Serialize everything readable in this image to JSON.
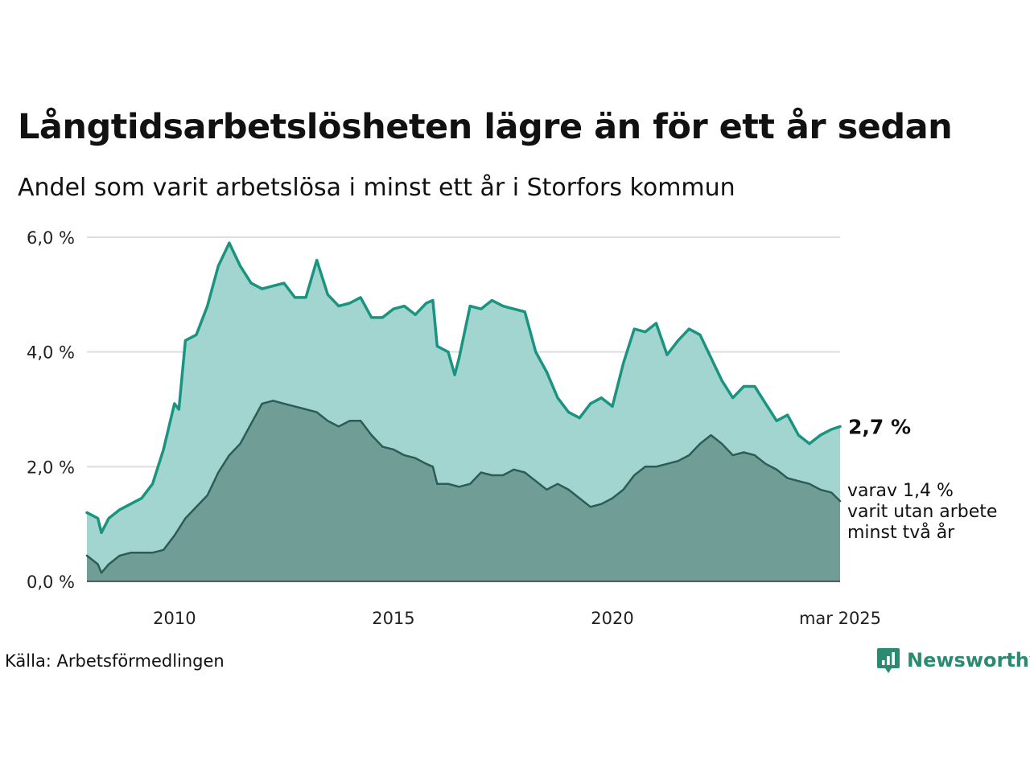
{
  "title": "Långtidsarbetslösheten lägre än för ett år sedan",
  "subtitle": "Andel som varit arbetslösa i minst ett år i Storfors kommun",
  "source": "Källa: Arbetsförmedlingen",
  "brand": "Newsworthy",
  "colors": {
    "total_line": "#1a9480",
    "total_fill": "#a3d5d0",
    "long_line": "#2b5d55",
    "long_fill": "#709e97",
    "grid": "#dddddd",
    "axis": "#333333",
    "brand": "#2d8a72"
  },
  "chart_data": {
    "type": "area",
    "x_start": "2008-01",
    "x_end": "2025-03",
    "xlim": [
      2008.0,
      2025.2
    ],
    "ylim": [
      0,
      6
    ],
    "y_ticks": [
      0,
      2,
      4,
      6
    ],
    "y_tick_labels": [
      "0,0 %",
      "2,0 %",
      "4,0 %",
      "6,0 %"
    ],
    "x_ticks": [
      2010,
      2015,
      2020,
      2025.2
    ],
    "x_tick_labels": [
      "2010",
      "2015",
      "2020",
      "mar 2025"
    ],
    "grid": true,
    "end_labels": {
      "total": "2,7 %",
      "long_lines": [
        "varav 1,4 %",
        "varit utan arbete",
        "minst två år"
      ]
    },
    "series": [
      {
        "key": "total",
        "x": [
          2008.0,
          2008.25,
          2008.33,
          2008.5,
          2008.75,
          2009.0,
          2009.25,
          2009.5,
          2009.75,
          2010.0,
          2010.1,
          2010.25,
          2010.5,
          2010.75,
          2011.0,
          2011.25,
          2011.5,
          2011.75,
          2012.0,
          2012.25,
          2012.5,
          2012.75,
          2013.0,
          2013.25,
          2013.5,
          2013.75,
          2014.0,
          2014.25,
          2014.5,
          2014.75,
          2015.0,
          2015.25,
          2015.5,
          2015.75,
          2015.9,
          2016.0,
          2016.25,
          2016.4,
          2016.5,
          2016.75,
          2017.0,
          2017.25,
          2017.5,
          2017.75,
          2018.0,
          2018.25,
          2018.5,
          2018.75,
          2019.0,
          2019.25,
          2019.5,
          2019.75,
          2020.0,
          2020.25,
          2020.5,
          2020.75,
          2021.0,
          2021.25,
          2021.5,
          2021.75,
          2022.0,
          2022.25,
          2022.5,
          2022.75,
          2023.0,
          2023.25,
          2023.5,
          2023.75,
          2024.0,
          2024.25,
          2024.5,
          2024.75,
          2025.0,
          2025.2
        ],
        "values": [
          1.2,
          1.1,
          0.85,
          1.1,
          1.25,
          1.35,
          1.45,
          1.7,
          2.3,
          3.1,
          3.0,
          4.2,
          4.3,
          4.8,
          5.5,
          5.9,
          5.5,
          5.2,
          5.1,
          5.15,
          5.2,
          4.95,
          4.95,
          5.6,
          5.0,
          4.8,
          4.85,
          4.95,
          4.6,
          4.6,
          4.75,
          4.8,
          4.65,
          4.85,
          4.9,
          4.1,
          4.0,
          3.6,
          3.9,
          4.8,
          4.75,
          4.9,
          4.8,
          4.75,
          4.7,
          4.0,
          3.65,
          3.2,
          2.95,
          2.85,
          3.1,
          3.2,
          3.05,
          3.8,
          4.4,
          4.35,
          4.5,
          3.95,
          4.2,
          4.4,
          4.3,
          3.9,
          3.5,
          3.2,
          3.4,
          3.4,
          3.1,
          2.8,
          2.9,
          2.55,
          2.4,
          2.55,
          2.65,
          2.7
        ]
      },
      {
        "key": "long",
        "x": [
          2008.0,
          2008.25,
          2008.33,
          2008.5,
          2008.75,
          2009.0,
          2009.25,
          2009.5,
          2009.75,
          2010.0,
          2010.25,
          2010.5,
          2010.75,
          2011.0,
          2011.25,
          2011.5,
          2011.75,
          2012.0,
          2012.25,
          2012.5,
          2012.75,
          2013.0,
          2013.25,
          2013.5,
          2013.75,
          2014.0,
          2014.25,
          2014.5,
          2014.75,
          2015.0,
          2015.25,
          2015.5,
          2015.75,
          2015.9,
          2016.0,
          2016.25,
          2016.5,
          2016.75,
          2017.0,
          2017.25,
          2017.5,
          2017.75,
          2018.0,
          2018.25,
          2018.5,
          2018.75,
          2019.0,
          2019.25,
          2019.5,
          2019.75,
          2020.0,
          2020.25,
          2020.5,
          2020.75,
          2021.0,
          2021.25,
          2021.5,
          2021.75,
          2022.0,
          2022.25,
          2022.5,
          2022.75,
          2023.0,
          2023.25,
          2023.5,
          2023.75,
          2024.0,
          2024.25,
          2024.5,
          2024.75,
          2025.0,
          2025.2
        ],
        "values": [
          0.45,
          0.3,
          0.15,
          0.3,
          0.45,
          0.5,
          0.5,
          0.5,
          0.55,
          0.8,
          1.1,
          1.3,
          1.5,
          1.9,
          2.2,
          2.4,
          2.75,
          3.1,
          3.15,
          3.1,
          3.05,
          3.0,
          2.95,
          2.8,
          2.7,
          2.8,
          2.8,
          2.55,
          2.35,
          2.3,
          2.2,
          2.15,
          2.05,
          2.0,
          1.7,
          1.7,
          1.65,
          1.7,
          1.9,
          1.85,
          1.85,
          1.95,
          1.9,
          1.75,
          1.6,
          1.7,
          1.6,
          1.45,
          1.3,
          1.35,
          1.45,
          1.6,
          1.85,
          2.0,
          2.0,
          2.05,
          2.1,
          2.2,
          2.4,
          2.55,
          2.4,
          2.2,
          2.25,
          2.2,
          2.05,
          1.95,
          1.8,
          1.75,
          1.7,
          1.6,
          1.55,
          1.4
        ]
      }
    ]
  }
}
